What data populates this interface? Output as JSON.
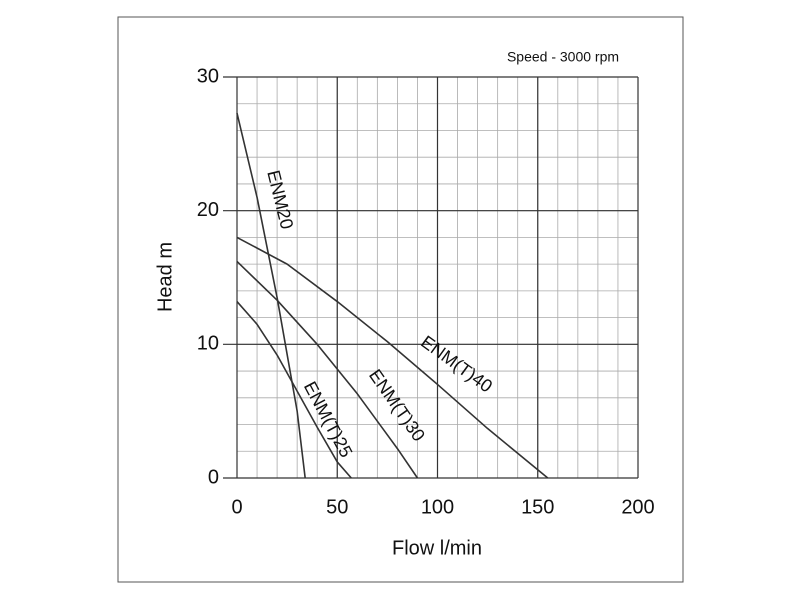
{
  "chart_data": {
    "type": "line",
    "annotation": "Speed - 3000 rpm",
    "x_label": "Flow l/min",
    "y_label": "Head m",
    "xlim": [
      0,
      200
    ],
    "ylim": [
      0,
      30
    ],
    "xticks": [
      0,
      50,
      100,
      150,
      200
    ],
    "yticks": [
      0,
      10,
      20,
      30
    ],
    "grid": true,
    "minor_grid": {
      "x": 10,
      "y": 2
    },
    "series": [
      {
        "name": "ENM20",
        "color": "#333333",
        "x": [
          0,
          10,
          20,
          30,
          34
        ],
        "values": [
          27.3,
          21,
          13.5,
          5,
          0
        ]
      },
      {
        "name": "ENM(T)25",
        "color": "#333333",
        "x": [
          0,
          10,
          20,
          30,
          40,
          50,
          57
        ],
        "values": [
          13.2,
          11.5,
          9.2,
          6.5,
          3.8,
          1.2,
          0
        ]
      },
      {
        "name": "ENM(T)30",
        "color": "#333333",
        "x": [
          0,
          20,
          40,
          60,
          80,
          90
        ],
        "values": [
          16.2,
          13.3,
          10,
          6.3,
          2.2,
          0
        ]
      },
      {
        "name": "ENM(T)40",
        "color": "#333333",
        "x": [
          0,
          25,
          50,
          75,
          100,
          125,
          155
        ],
        "values": [
          18,
          16,
          13.2,
          10.2,
          7,
          3.7,
          0
        ]
      }
    ]
  }
}
